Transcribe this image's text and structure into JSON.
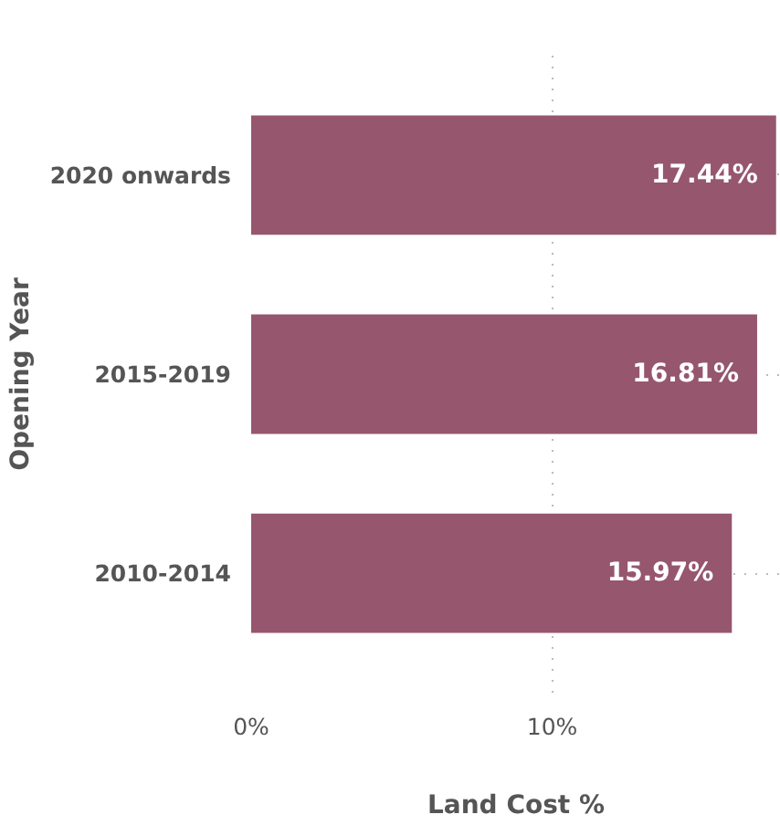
{
  "chart_data": {
    "type": "bar",
    "orientation": "horizontal",
    "xlabel": "Land Cost %",
    "ylabel": "Opening Year",
    "categories": [
      "2020 onwards",
      "2015-2019",
      "2010-2014"
    ],
    "values": [
      17.44,
      16.81,
      15.97
    ],
    "value_labels": [
      "17.44%",
      "16.81%",
      "15.97%"
    ],
    "color": "#96566e",
    "xlim": [
      0,
      17.6
    ],
    "xticks": [
      {
        "value": 0,
        "label": "0%"
      },
      {
        "value": 10,
        "label": "10%"
      }
    ],
    "grid": true
  }
}
